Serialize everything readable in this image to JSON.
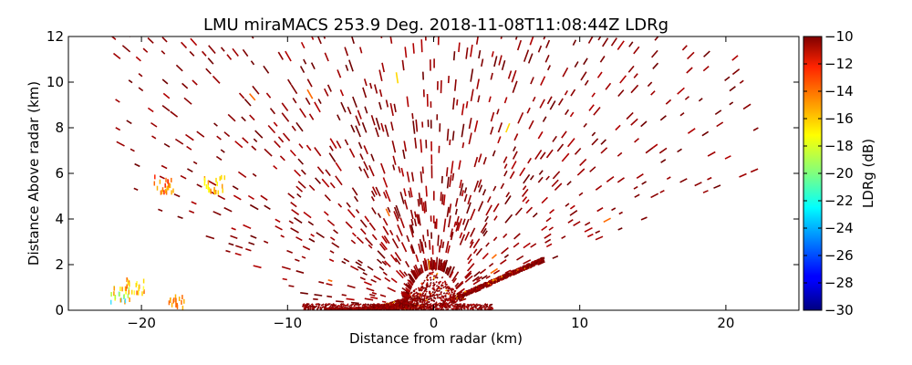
{
  "chart_data": {
    "type": "heatmap",
    "title": "LMU miraMACS 253.9 Deg. 2018-11-08T11:08:44Z  LDRg",
    "xlabel": "Distance from radar (km)",
    "ylabel": "Distance Above radar  (km)",
    "xlim": [
      -25,
      25
    ],
    "ylim": [
      0,
      12
    ],
    "x_ticks": [
      "−20",
      "−10",
      "0",
      "10",
      "20"
    ],
    "x_tick_values": [
      -20,
      -10,
      0,
      10,
      20
    ],
    "y_ticks": [
      "0",
      "2",
      "4",
      "6",
      "8",
      "10",
      "12"
    ],
    "y_tick_values": [
      0,
      2,
      4,
      6,
      8,
      10,
      12
    ],
    "colorbar": {
      "label": "LDRg (dB)",
      "range": [
        -30,
        -10
      ],
      "ticks": [
        "−10",
        "−12",
        "−14",
        "−16",
        "−18",
        "−20",
        "−22",
        "−24",
        "−26",
        "−28",
        "−30"
      ],
      "tick_values": [
        -10,
        -12,
        -14,
        -16,
        -18,
        -20,
        -22,
        -24,
        -26,
        -28,
        -30
      ],
      "colormap": "jet"
    },
    "dominant_value_db": -10,
    "grid": false
  }
}
